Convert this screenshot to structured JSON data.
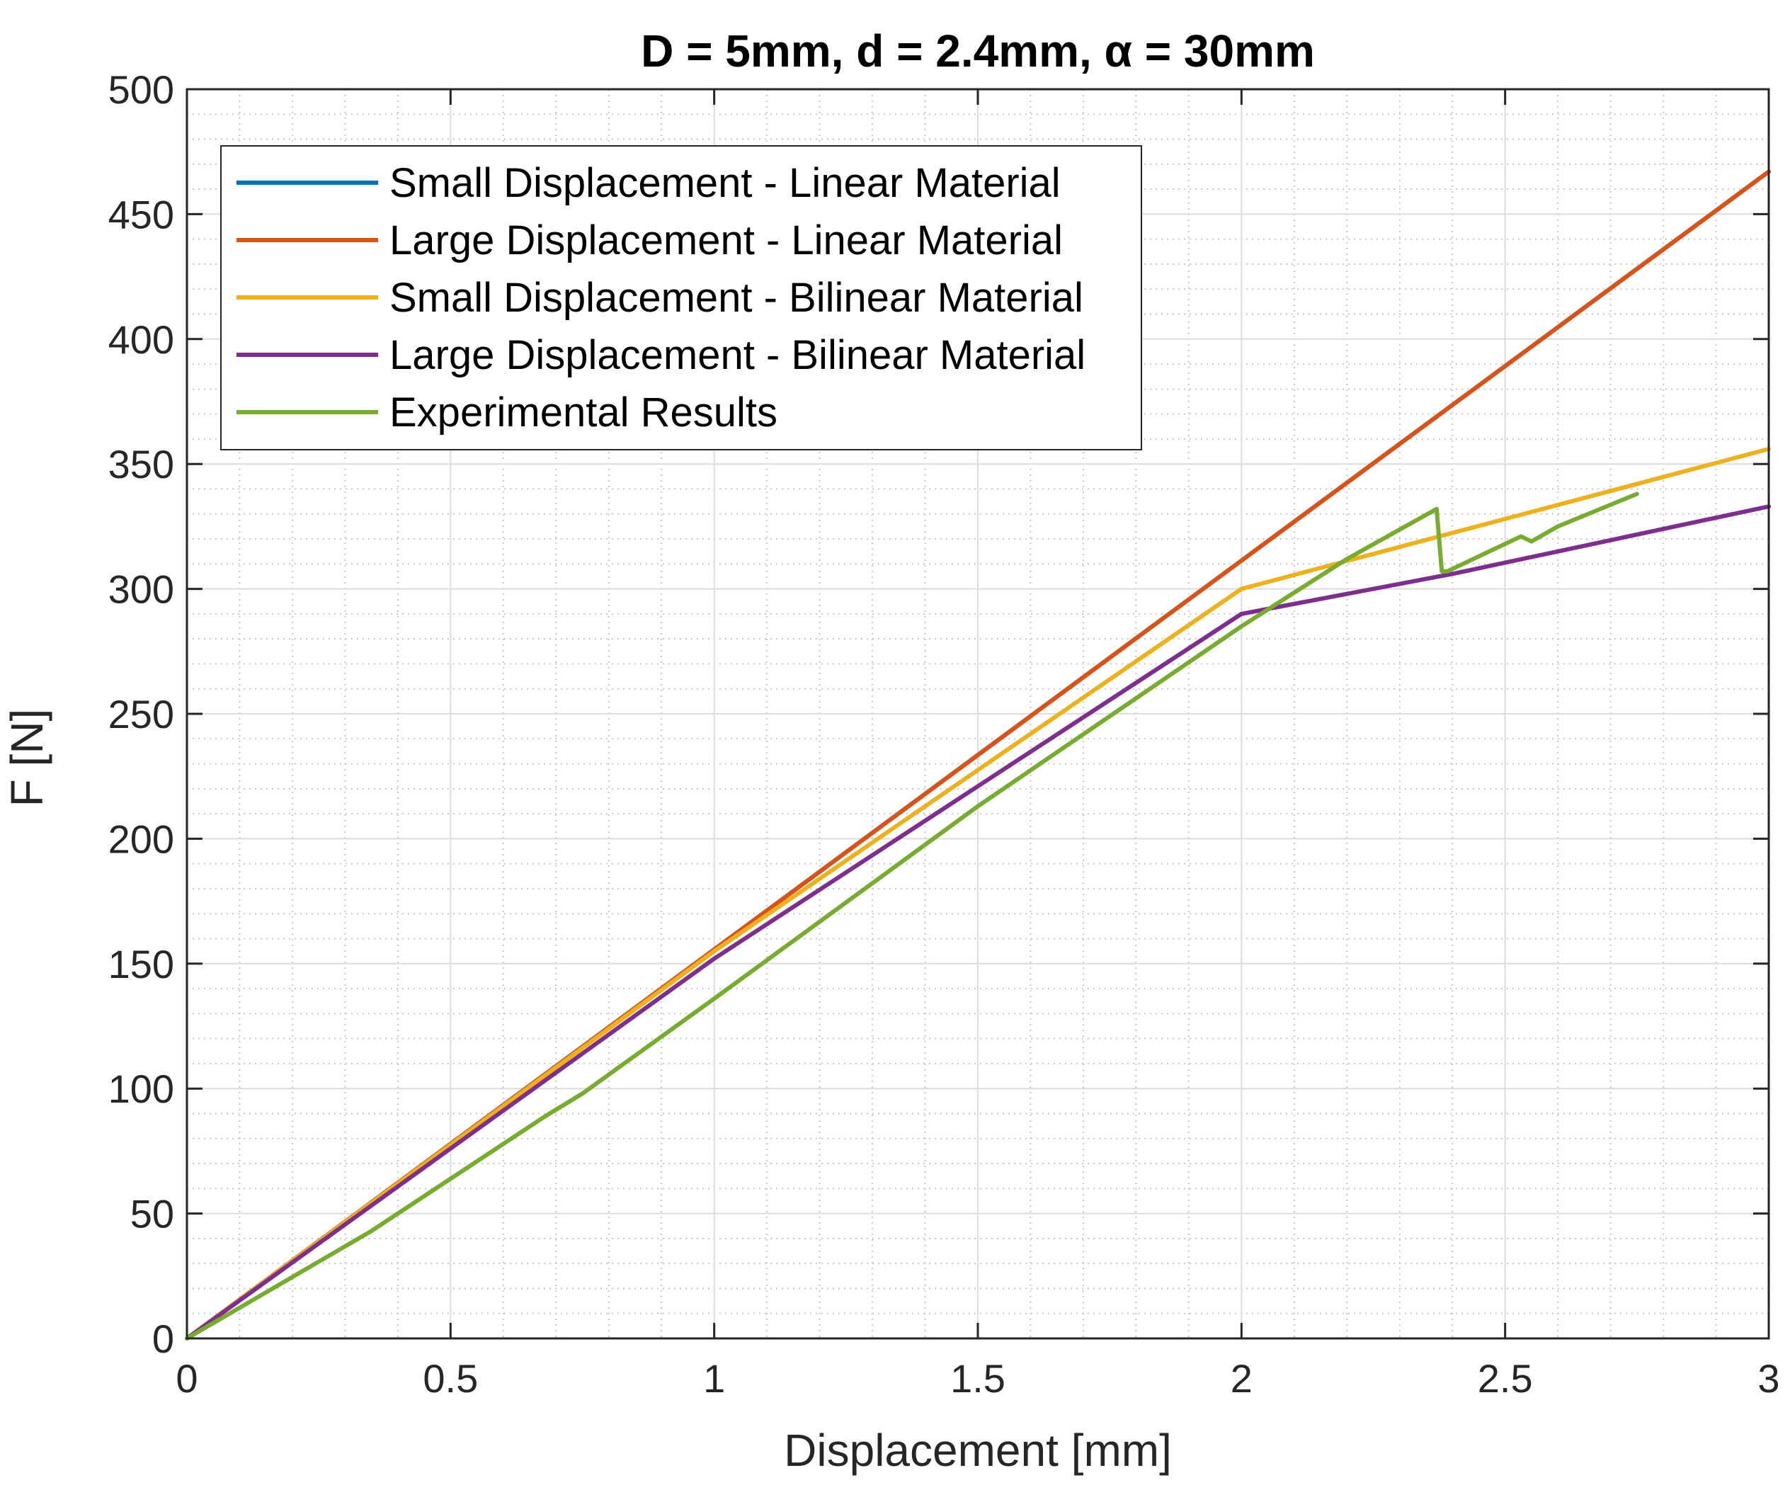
{
  "chart_data": {
    "type": "line",
    "title": "D = 5mm, d = 2.4mm, α = 30mm",
    "xlabel": "Displacement [mm]",
    "ylabel": "F [N]",
    "xlim": [
      0,
      3
    ],
    "ylim": [
      0,
      500
    ],
    "xticks": [
      0,
      0.5,
      1,
      1.5,
      2,
      2.5,
      3
    ],
    "xtick_labels": [
      "0",
      "0.5",
      "1",
      "1.5",
      "2",
      "2.5",
      "3"
    ],
    "yticks": [
      0,
      50,
      100,
      150,
      200,
      250,
      300,
      350,
      400,
      450,
      500
    ],
    "ytick_labels": [
      "0",
      "50",
      "100",
      "150",
      "200",
      "250",
      "300",
      "350",
      "400",
      "450",
      "500"
    ],
    "grid": true,
    "minor_grid": true,
    "legend_position": "top-left",
    "series": [
      {
        "name": "Small Displacement - Linear Material",
        "color": "#0072BD",
        "x": [
          0,
          3
        ],
        "y": [
          0,
          467
        ]
      },
      {
        "name": "Large Displacement - Linear Material",
        "color": "#D95319",
        "x": [
          0,
          3
        ],
        "y": [
          0,
          467
        ]
      },
      {
        "name": "Small Displacement - Bilinear Material",
        "color": "#EDB120",
        "x": [
          0,
          1,
          2,
          3
        ],
        "y": [
          0,
          155,
          300,
          356
        ]
      },
      {
        "name": "Large Displacement - Bilinear Material",
        "color": "#7E2F8E",
        "x": [
          0,
          1,
          2,
          2.4,
          3
        ],
        "y": [
          0,
          152,
          290,
          306,
          333
        ]
      },
      {
        "name": "Experimental Results",
        "color": "#77AC30",
        "x": [
          0,
          0.35,
          0.68,
          0.75,
          1,
          1.5,
          2,
          2.2,
          2.37,
          2.38,
          2.39,
          2.45,
          2.53,
          2.55,
          2.6,
          2.75
        ],
        "y": [
          0,
          43,
          89,
          98,
          136,
          213,
          285,
          312,
          332,
          307,
          307,
          313,
          321,
          319,
          325,
          338
        ]
      }
    ]
  }
}
